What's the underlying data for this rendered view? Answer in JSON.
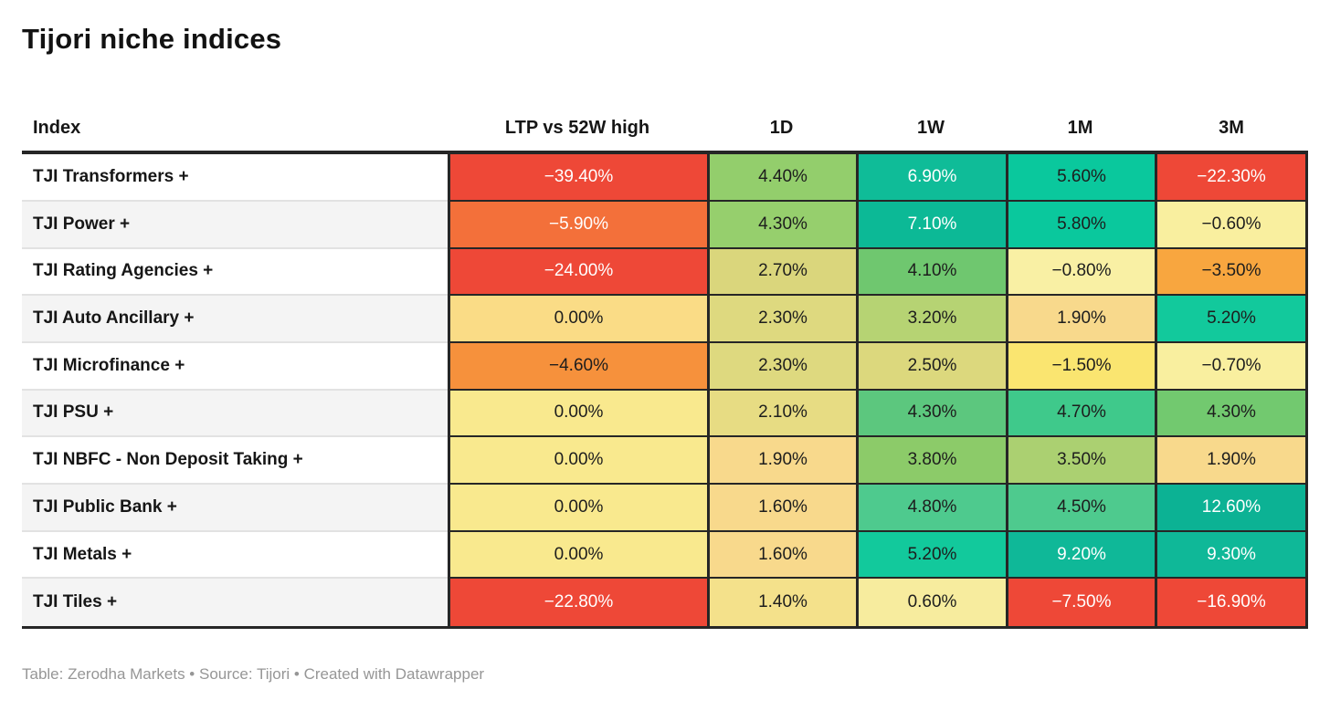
{
  "title": "Tijori niche indices",
  "footer": "Table: Zerodha Markets • Source: Tijori • Created with Datawrapper",
  "table": {
    "columns": [
      "Index",
      "LTP vs 52W high",
      "1D",
      "1W",
      "1M",
      "3M"
    ],
    "rows": [
      {
        "name": "TJI Transformers +",
        "cells": [
          {
            "v": "−39.40%",
            "bg": "#ee4837",
            "fg": "#ffffff"
          },
          {
            "v": "4.40%",
            "bg": "#93ce6c",
            "fg": "#1d1d1d"
          },
          {
            "v": "6.90%",
            "bg": "#0fbc98",
            "fg": "#ffffff"
          },
          {
            "v": "5.60%",
            "bg": "#0ac89d",
            "fg": "#1d1d1d"
          },
          {
            "v": "−22.30%",
            "bg": "#ee4837",
            "fg": "#ffffff"
          }
        ]
      },
      {
        "name": "TJI Power +",
        "cells": [
          {
            "v": "−5.90%",
            "bg": "#f3703a",
            "fg": "#ffffff"
          },
          {
            "v": "4.30%",
            "bg": "#96cf6d",
            "fg": "#1d1d1d"
          },
          {
            "v": "7.10%",
            "bg": "#0cb996",
            "fg": "#ffffff"
          },
          {
            "v": "5.80%",
            "bg": "#0ac89d",
            "fg": "#1d1d1d"
          },
          {
            "v": "−0.60%",
            "bg": "#f9ef9f",
            "fg": "#1d1d1d"
          }
        ]
      },
      {
        "name": "TJI Rating Agencies +",
        "cells": [
          {
            "v": "−24.00%",
            "bg": "#ee4837",
            "fg": "#ffffff"
          },
          {
            "v": "2.70%",
            "bg": "#dad67c",
            "fg": "#1d1d1d"
          },
          {
            "v": "4.10%",
            "bg": "#6fc76f",
            "fg": "#1d1d1d"
          },
          {
            "v": "−0.80%",
            "bg": "#f9f0a4",
            "fg": "#1d1d1d"
          },
          {
            "v": "−3.50%",
            "bg": "#f8a63f",
            "fg": "#1d1d1d"
          }
        ]
      },
      {
        "name": "TJI Auto Ancillary +",
        "cells": [
          {
            "v": "0.00%",
            "bg": "#fadc86",
            "fg": "#1d1d1d"
          },
          {
            "v": "2.30%",
            "bg": "#ded97f",
            "fg": "#1d1d1d"
          },
          {
            "v": "3.20%",
            "bg": "#b6d373",
            "fg": "#1d1d1d"
          },
          {
            "v": "1.90%",
            "bg": "#f8d98c",
            "fg": "#1d1d1d"
          },
          {
            "v": "5.20%",
            "bg": "#12c99c",
            "fg": "#1d1d1d"
          }
        ]
      },
      {
        "name": "TJI Microfinance +",
        "cells": [
          {
            "v": "−4.60%",
            "bg": "#f6913c",
            "fg": "#1d1d1d"
          },
          {
            "v": "2.30%",
            "bg": "#ded97f",
            "fg": "#1d1d1d"
          },
          {
            "v": "2.50%",
            "bg": "#dcd87d",
            "fg": "#1d1d1d"
          },
          {
            "v": "−1.50%",
            "bg": "#fae570",
            "fg": "#1d1d1d"
          },
          {
            "v": "−0.70%",
            "bg": "#f9ef9f",
            "fg": "#1d1d1d"
          }
        ]
      },
      {
        "name": "TJI PSU +",
        "cells": [
          {
            "v": "0.00%",
            "bg": "#f9e98e",
            "fg": "#1d1d1d"
          },
          {
            "v": "2.10%",
            "bg": "#e7dc83",
            "fg": "#1d1d1d"
          },
          {
            "v": "4.30%",
            "bg": "#5cc77e",
            "fg": "#1d1d1d"
          },
          {
            "v": "4.70%",
            "bg": "#3fc98b",
            "fg": "#1d1d1d"
          },
          {
            "v": "4.30%",
            "bg": "#72c96f",
            "fg": "#1d1d1d"
          }
        ]
      },
      {
        "name": "TJI NBFC - Non Deposit Taking +",
        "cells": [
          {
            "v": "0.00%",
            "bg": "#f9e98e",
            "fg": "#1d1d1d"
          },
          {
            "v": "1.90%",
            "bg": "#f8d98c",
            "fg": "#1d1d1d"
          },
          {
            "v": "3.80%",
            "bg": "#8ccb69",
            "fg": "#1d1d1d"
          },
          {
            "v": "3.50%",
            "bg": "#abd071",
            "fg": "#1d1d1d"
          },
          {
            "v": "1.90%",
            "bg": "#f8d98c",
            "fg": "#1d1d1d"
          }
        ]
      },
      {
        "name": "TJI Public Bank +",
        "cells": [
          {
            "v": "0.00%",
            "bg": "#f9e98e",
            "fg": "#1d1d1d"
          },
          {
            "v": "1.60%",
            "bg": "#f8d98c",
            "fg": "#1d1d1d"
          },
          {
            "v": "4.80%",
            "bg": "#4eca8e",
            "fg": "#1d1d1d"
          },
          {
            "v": "4.50%",
            "bg": "#4eca8e",
            "fg": "#1d1d1d"
          },
          {
            "v": "12.60%",
            "bg": "#0cb294",
            "fg": "#ffffff"
          }
        ]
      },
      {
        "name": "TJI Metals +",
        "cells": [
          {
            "v": "0.00%",
            "bg": "#f9e98e",
            "fg": "#1d1d1d"
          },
          {
            "v": "1.60%",
            "bg": "#f8d98c",
            "fg": "#1d1d1d"
          },
          {
            "v": "5.20%",
            "bg": "#12c99c",
            "fg": "#1d1d1d"
          },
          {
            "v": "9.20%",
            "bg": "#0fb898",
            "fg": "#ffffff"
          },
          {
            "v": "9.30%",
            "bg": "#0fb898",
            "fg": "#ffffff"
          }
        ]
      },
      {
        "name": "TJI Tiles +",
        "cells": [
          {
            "v": "−22.80%",
            "bg": "#ee4837",
            "fg": "#ffffff"
          },
          {
            "v": "1.40%",
            "bg": "#f4e18b",
            "fg": "#1d1d1d"
          },
          {
            "v": "0.60%",
            "bg": "#f7ec9e",
            "fg": "#1d1d1d"
          },
          {
            "v": "−7.50%",
            "bg": "#ee4837",
            "fg": "#ffffff"
          },
          {
            "v": "−16.90%",
            "bg": "#ee4837",
            "fg": "#ffffff"
          }
        ]
      }
    ]
  },
  "chart_data": {
    "type": "table",
    "title": "Tijori niche indices",
    "columns": [
      "Index",
      "LTP vs 52W high",
      "1D",
      "1W",
      "1M",
      "3M"
    ],
    "units": "%",
    "color_scale": "diverging red-yellow-green heatmap (negative=red/orange, zero=yellow, positive=green/teal)",
    "rows": [
      [
        "TJI Transformers +",
        -39.4,
        4.4,
        6.9,
        5.6,
        -22.3
      ],
      [
        "TJI Power +",
        -5.9,
        4.3,
        7.1,
        5.8,
        -0.6
      ],
      [
        "TJI Rating Agencies +",
        -24.0,
        2.7,
        4.1,
        -0.8,
        -3.5
      ],
      [
        "TJI Auto Ancillary +",
        0.0,
        2.3,
        3.2,
        1.9,
        5.2
      ],
      [
        "TJI Microfinance +",
        -4.6,
        2.3,
        2.5,
        -1.5,
        -0.7
      ],
      [
        "TJI PSU +",
        0.0,
        2.1,
        4.3,
        4.7,
        4.3
      ],
      [
        "TJI NBFC - Non Deposit Taking +",
        0.0,
        1.9,
        3.8,
        3.5,
        1.9
      ],
      [
        "TJI Public Bank +",
        0.0,
        1.6,
        4.8,
        4.5,
        12.6
      ],
      [
        "TJI Metals +",
        0.0,
        1.6,
        5.2,
        9.2,
        9.3
      ],
      [
        "TJI Tiles +",
        -22.8,
        1.4,
        0.6,
        -7.5,
        -16.9
      ]
    ]
  }
}
